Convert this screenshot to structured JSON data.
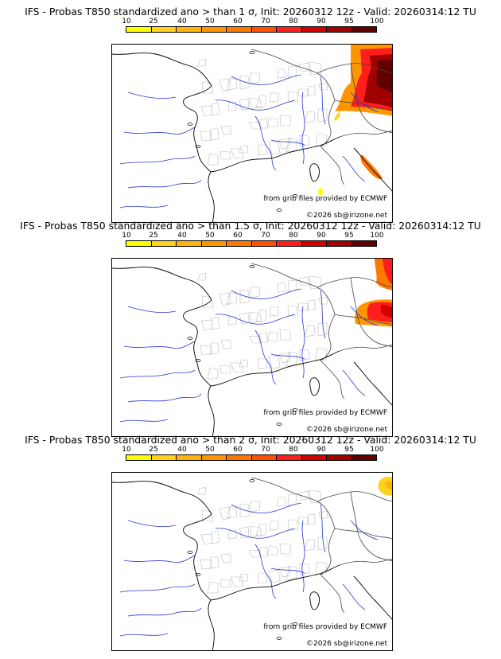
{
  "legend": {
    "ticks": [
      "10",
      "25",
      "40",
      "50",
      "60",
      "70",
      "80",
      "90",
      "95",
      "100"
    ],
    "colors": [
      "#ffff00",
      "#ffd21e",
      "#ffb40a",
      "#ff9600",
      "#ff7800",
      "#ff5000",
      "#ff1e1e",
      "#d20000",
      "#a00000",
      "#600000"
    ]
  },
  "map_labels": {
    "source": "from grib files provided by ECMWF",
    "copyright": "©2026 sb@irizone.net"
  },
  "panels": [
    {
      "title": "IFS - Probas T850  standardized ano > than 1 σ, Init: 20260312 12z - Valid: 20260314:12 TU",
      "threshold": "1 σ",
      "intensity": "high"
    },
    {
      "title": "IFS - Probas T850  standardized ano > than 1.5 σ, Init: 20260312 12z - Valid: 20260314:12 TU",
      "threshold": "1.5 σ",
      "intensity": "medium"
    },
    {
      "title": "IFS - Probas T850  standardized ano > than 2 σ, Init: 20260312 12z - Valid: 20260314:12 TU",
      "threshold": "2 σ",
      "intensity": "low"
    }
  ]
}
